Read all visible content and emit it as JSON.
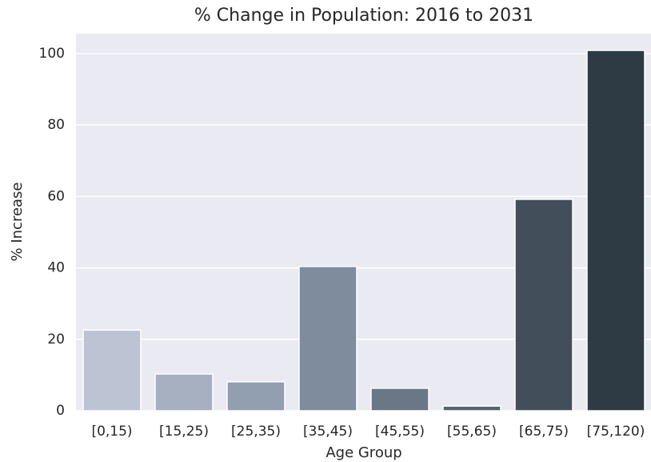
{
  "chart_data": {
    "type": "bar",
    "title": "% Change in Population: 2016 to 2031",
    "xlabel": "Age Group",
    "ylabel": "% Increase",
    "categories": [
      "[0,15)",
      "[15,25)",
      "[25,35)",
      "[35,45)",
      "[45,55)",
      "[55,65)",
      "[65,75)",
      "[75,120)"
    ],
    "values": [
      22.6,
      10.3,
      8.1,
      40.4,
      6.3,
      1.3,
      59.2,
      100.9
    ],
    "colors": [
      "#bcc4d4",
      "#a6b0c1",
      "#929fb1",
      "#7f8c9d",
      "#6a7787",
      "#566271",
      "#424f5b",
      "#2f3b44"
    ],
    "ylim": [
      0,
      105.6
    ],
    "yticks": [
      0,
      20,
      40,
      60,
      80,
      100
    ],
    "grid": true
  }
}
